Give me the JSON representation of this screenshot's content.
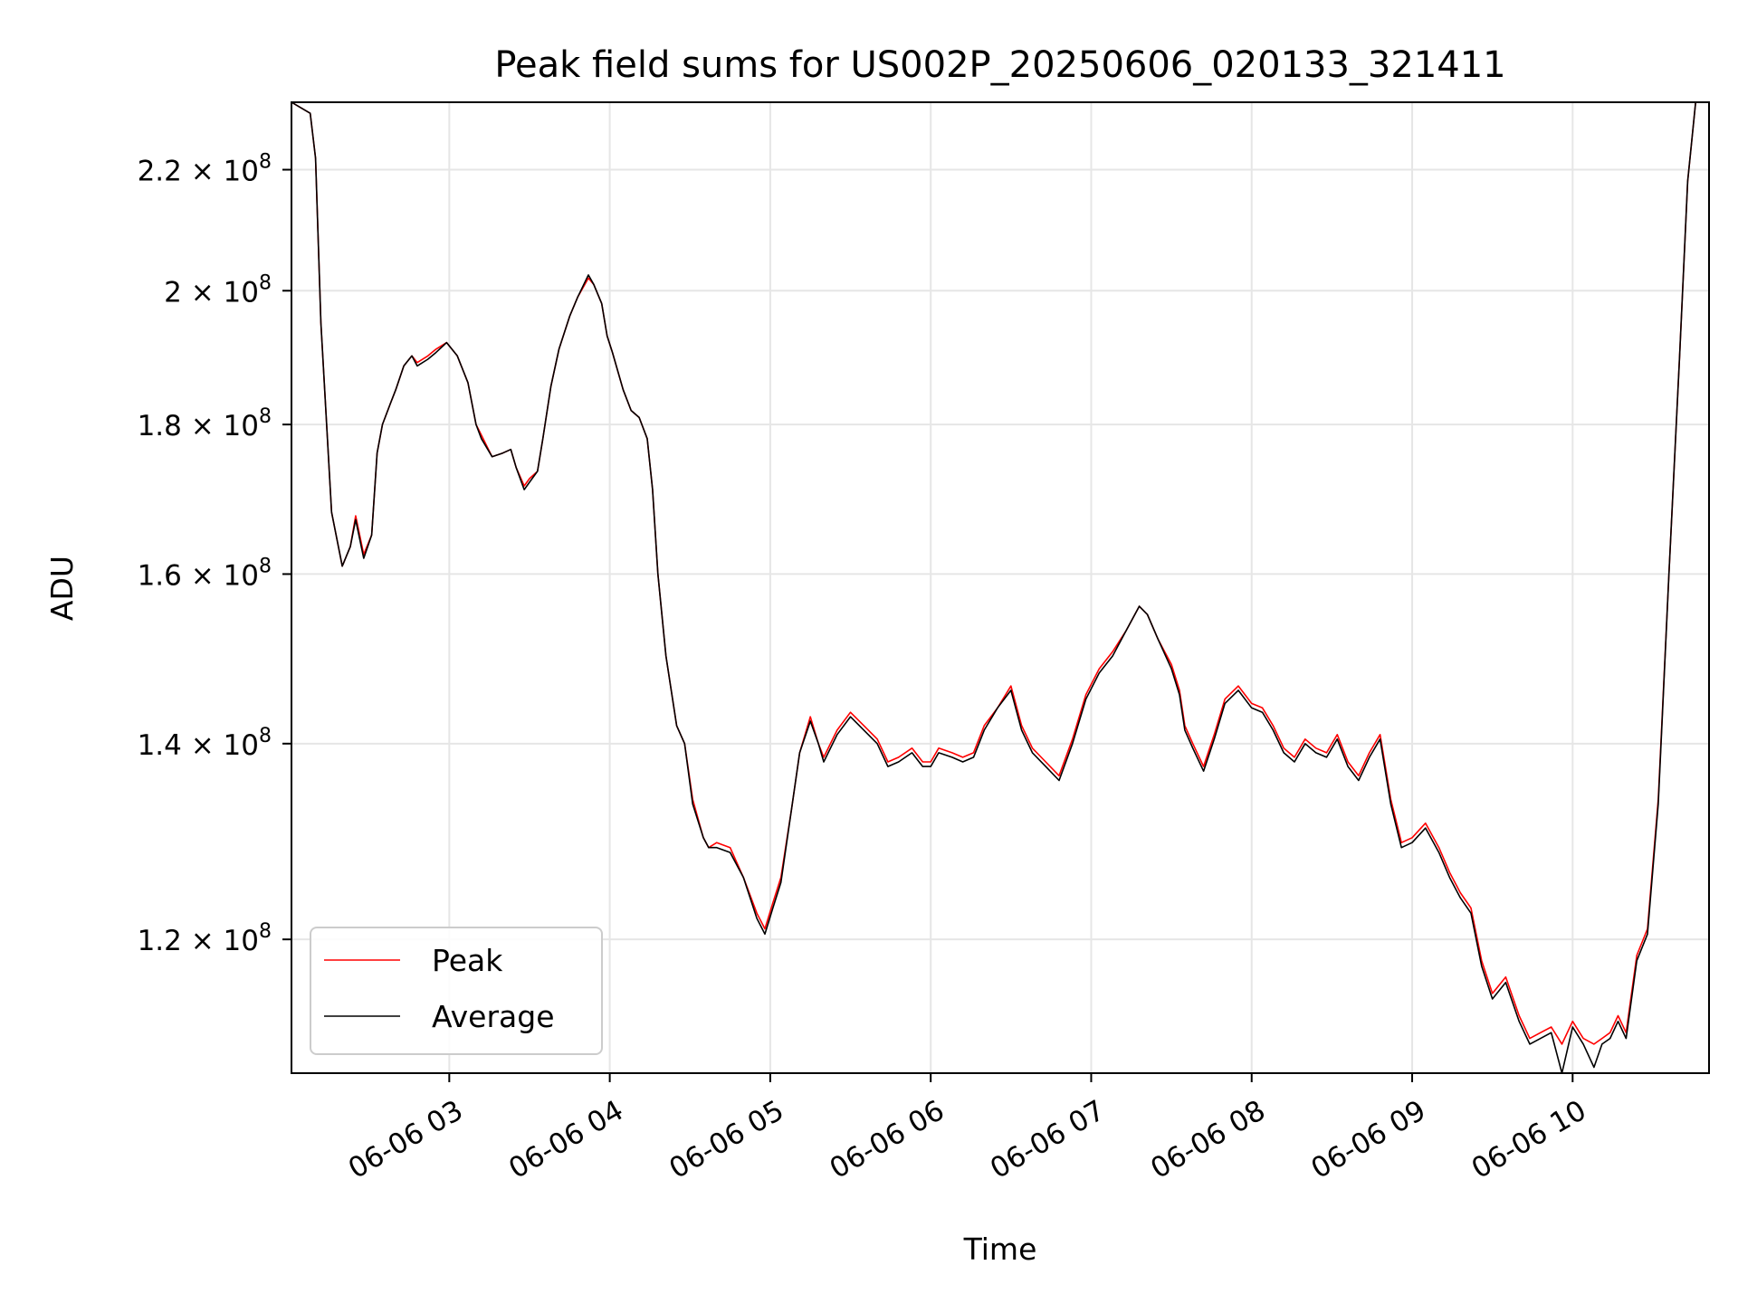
{
  "chart_data": {
    "type": "line",
    "title": "Peak field sums for US002P_20250606_020133_321411",
    "xlabel": "Time",
    "ylabel": "ADU",
    "yscale": "log",
    "xlim": [
      "2025-06-06 02:01",
      "2025-06-06 10:51"
    ],
    "ylim": [
      108000000,
      232000000
    ],
    "grid": true,
    "legend_position": "lower-left",
    "x_ticks": [
      {
        "value": "2025-06-06 03:00",
        "label": "06-06 03"
      },
      {
        "value": "2025-06-06 04:00",
        "label": "06-06 04"
      },
      {
        "value": "2025-06-06 05:00",
        "label": "06-06 05"
      },
      {
        "value": "2025-06-06 06:00",
        "label": "06-06 06"
      },
      {
        "value": "2025-06-06 07:00",
        "label": "06-06 07"
      },
      {
        "value": "2025-06-06 08:00",
        "label": "06-06 08"
      },
      {
        "value": "2025-06-06 09:00",
        "label": "06-06 09"
      },
      {
        "value": "2025-06-06 10:00",
        "label": "06-06 10"
      }
    ],
    "y_ticks": [
      {
        "value": 120000000,
        "mantissa": "1.2",
        "exponent": "8"
      },
      {
        "value": 140000000,
        "mantissa": "1.4",
        "exponent": "8"
      },
      {
        "value": 160000000,
        "mantissa": "1.6",
        "exponent": "8"
      },
      {
        "value": 180000000,
        "mantissa": "1.8",
        "exponent": "8"
      },
      {
        "value": 200000000,
        "mantissa": "2",
        "exponent": "8"
      },
      {
        "value": 220000000,
        "mantissa": "2.2",
        "exponent": "8"
      }
    ],
    "tick_times_symbol": "×",
    "tick_base": "10",
    "x": [
      "2025-06-06 02:01",
      "2025-06-06 02:08",
      "2025-06-06 02:10",
      "2025-06-06 02:12",
      "2025-06-06 02:16",
      "2025-06-06 02:20",
      "2025-06-06 02:23",
      "2025-06-06 02:25",
      "2025-06-06 02:28",
      "2025-06-06 02:31",
      "2025-06-06 02:33",
      "2025-06-06 02:35",
      "2025-06-06 02:38",
      "2025-06-06 02:40",
      "2025-06-06 02:43",
      "2025-06-06 02:46",
      "2025-06-06 02:48",
      "2025-06-06 02:52",
      "2025-06-06 02:55",
      "2025-06-06 02:59",
      "2025-06-06 03:03",
      "2025-06-06 03:07",
      "2025-06-06 03:10",
      "2025-06-06 03:12",
      "2025-06-06 03:16",
      "2025-06-06 03:20",
      "2025-06-06 03:23",
      "2025-06-06 03:25",
      "2025-06-06 03:28",
      "2025-06-06 03:30",
      "2025-06-06 03:33",
      "2025-06-06 03:35",
      "2025-06-06 03:38",
      "2025-06-06 03:41",
      "2025-06-06 03:45",
      "2025-06-06 03:48",
      "2025-06-06 03:52",
      "2025-06-06 03:54",
      "2025-06-06 03:57",
      "2025-06-06 03:59",
      "2025-06-06 04:01",
      "2025-06-06 04:05",
      "2025-06-06 04:08",
      "2025-06-06 04:11",
      "2025-06-06 04:14",
      "2025-06-06 04:16",
      "2025-06-06 04:18",
      "2025-06-06 04:21",
      "2025-06-06 04:25",
      "2025-06-06 04:28",
      "2025-06-06 04:31",
      "2025-06-06 04:35",
      "2025-06-06 04:37",
      "2025-06-06 04:40",
      "2025-06-06 04:45",
      "2025-06-06 04:50",
      "2025-06-06 04:55",
      "2025-06-06 04:58",
      "2025-06-06 05:01",
      "2025-06-06 05:04",
      "2025-06-06 05:08",
      "2025-06-06 05:11",
      "2025-06-06 05:15",
      "2025-06-06 05:18",
      "2025-06-06 05:20",
      "2025-06-06 05:25",
      "2025-06-06 05:30",
      "2025-06-06 05:35",
      "2025-06-06 05:40",
      "2025-06-06 05:44",
      "2025-06-06 05:48",
      "2025-06-06 05:53",
      "2025-06-06 05:57",
      "2025-06-06 06:00",
      "2025-06-06 06:03",
      "2025-06-06 06:08",
      "2025-06-06 06:12",
      "2025-06-06 06:16",
      "2025-06-06 06:20",
      "2025-06-06 06:25",
      "2025-06-06 06:30",
      "2025-06-06 06:34",
      "2025-06-06 06:38",
      "2025-06-06 06:43",
      "2025-06-06 06:48",
      "2025-06-06 06:53",
      "2025-06-06 06:58",
      "2025-06-06 07:03",
      "2025-06-06 07:08",
      "2025-06-06 07:13",
      "2025-06-06 07:18",
      "2025-06-06 07:21",
      "2025-06-06 07:25",
      "2025-06-06 07:30",
      "2025-06-06 07:33",
      "2025-06-06 07:35",
      "2025-06-06 07:38",
      "2025-06-06 07:42",
      "2025-06-06 07:46",
      "2025-06-06 07:50",
      "2025-06-06 07:55",
      "2025-06-06 08:00",
      "2025-06-06 08:04",
      "2025-06-06 08:08",
      "2025-06-06 08:12",
      "2025-06-06 08:16",
      "2025-06-06 08:20",
      "2025-06-06 08:24",
      "2025-06-06 08:28",
      "2025-06-06 08:32",
      "2025-06-06 08:36",
      "2025-06-06 08:40",
      "2025-06-06 08:44",
      "2025-06-06 08:48",
      "2025-06-06 08:52",
      "2025-06-06 08:56",
      "2025-06-06 09:00",
      "2025-06-06 09:05",
      "2025-06-06 09:10",
      "2025-06-06 09:14",
      "2025-06-06 09:18",
      "2025-06-06 09:22",
      "2025-06-06 09:26",
      "2025-06-06 09:30",
      "2025-06-06 09:35",
      "2025-06-06 09:40",
      "2025-06-06 09:44",
      "2025-06-06 09:48",
      "2025-06-06 09:52",
      "2025-06-06 09:56",
      "2025-06-06 10:00",
      "2025-06-06 10:04",
      "2025-06-06 10:08",
      "2025-06-06 10:11",
      "2025-06-06 10:14",
      "2025-06-06 10:17",
      "2025-06-06 10:20",
      "2025-06-06 10:24",
      "2025-06-06 10:28",
      "2025-06-06 10:32",
      "2025-06-06 10:36",
      "2025-06-06 10:40",
      "2025-06-06 10:43",
      "2025-06-06 10:46",
      "2025-06-06 10:51"
    ],
    "series": [
      {
        "name": "Peak",
        "color": "#ff0000",
        "values": [
          232000000,
          230000000,
          222000000,
          195000000,
          168000000,
          161000000,
          163500000,
          167500000,
          162500000,
          165000000,
          176000000,
          180000000,
          183000000,
          185000000,
          188500000,
          190000000,
          189000000,
          190000000,
          191000000,
          192000000,
          190000000,
          186000000,
          180000000,
          178500000,
          175500000,
          176000000,
          176500000,
          174000000,
          171500000,
          172500000,
          173500000,
          178000000,
          185500000,
          191000000,
          196000000,
          199000000,
          202000000,
          201000000,
          198000000,
          193000000,
          190500000,
          185000000,
          182000000,
          181000000,
          178000000,
          171000000,
          160000000,
          150000000,
          142000000,
          140000000,
          134000000,
          130000000,
          129000000,
          129500000,
          129000000,
          126000000,
          122500000,
          121000000,
          123500000,
          126000000,
          133000000,
          139000000,
          143000000,
          140000000,
          138500000,
          141500000,
          143500000,
          142000000,
          140500000,
          138000000,
          138500000,
          139500000,
          138000000,
          138000000,
          139500000,
          139000000,
          138500000,
          139000000,
          142000000,
          144000000,
          146500000,
          142000000,
          139500000,
          138000000,
          136500000,
          140500000,
          145500000,
          148500000,
          150500000,
          153000000,
          156000000,
          155000000,
          152000000,
          149000000,
          146000000,
          142000000,
          140000000,
          137500000,
          141000000,
          145000000,
          146500000,
          144500000,
          144000000,
          142000000,
          139500000,
          138500000,
          140500000,
          139500000,
          139000000,
          141000000,
          138000000,
          136500000,
          139000000,
          141000000,
          134000000,
          129500000,
          130000000,
          131500000,
          129000000,
          126500000,
          124500000,
          123000000,
          118000000,
          115000000,
          116500000,
          113000000,
          111000000,
          111500000,
          112000000,
          110500000,
          112500000,
          111000000,
          110500000,
          111000000,
          111500000,
          113000000,
          111500000,
          118500000,
          121000000,
          134000000,
          160000000,
          190000000,
          218000000,
          232000000,
          232000000
        ]
      },
      {
        "name": "Average",
        "color": "#000000",
        "values": [
          232000000,
          230000000,
          222000000,
          195000000,
          168000000,
          161000000,
          163500000,
          167000000,
          162000000,
          165000000,
          176000000,
          180000000,
          183000000,
          185000000,
          188500000,
          190000000,
          188500000,
          189500000,
          190500000,
          192000000,
          190000000,
          186000000,
          180000000,
          178000000,
          175500000,
          176000000,
          176500000,
          174000000,
          171000000,
          172000000,
          173500000,
          178000000,
          185500000,
          191000000,
          196000000,
          199000000,
          202500000,
          201000000,
          198000000,
          193000000,
          190500000,
          185000000,
          182000000,
          181000000,
          178000000,
          171000000,
          160000000,
          150000000,
          142000000,
          140000000,
          133500000,
          130000000,
          129000000,
          129000000,
          128500000,
          126000000,
          122000000,
          120500000,
          123000000,
          125500000,
          133000000,
          139000000,
          142500000,
          140000000,
          138000000,
          141000000,
          143000000,
          141500000,
          140000000,
          137500000,
          138000000,
          139000000,
          137500000,
          137500000,
          139000000,
          138500000,
          138000000,
          138500000,
          141500000,
          144000000,
          146000000,
          141500000,
          139000000,
          137500000,
          136000000,
          140000000,
          145000000,
          148000000,
          150000000,
          153000000,
          156000000,
          155000000,
          152000000,
          148500000,
          145500000,
          141500000,
          139500000,
          137000000,
          140500000,
          144500000,
          146000000,
          144000000,
          143500000,
          141500000,
          139000000,
          138000000,
          140000000,
          139000000,
          138500000,
          140500000,
          137500000,
          136000000,
          138500000,
          140500000,
          133500000,
          129000000,
          129500000,
          131000000,
          128500000,
          126000000,
          124000000,
          122500000,
          117500000,
          114500000,
          116000000,
          112500000,
          110500000,
          111000000,
          111500000,
          108000000,
          112000000,
          110500000,
          108500000,
          110500000,
          111000000,
          112500000,
          111000000,
          118000000,
          120500000,
          133500000,
          160000000,
          190000000,
          218000000,
          232000000,
          232000000
        ]
      }
    ]
  }
}
